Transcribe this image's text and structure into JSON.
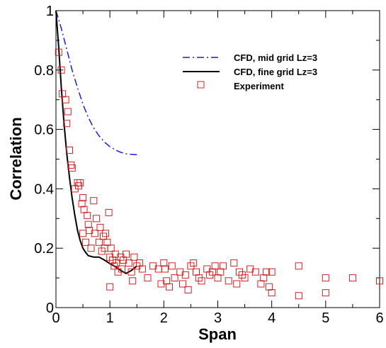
{
  "chart_data": {
    "type": "scatter",
    "xlabel": "Span",
    "ylabel": "Correlation",
    "xlim": [
      0,
      6
    ],
    "ylim": [
      0,
      1
    ],
    "x_ticks": [
      "0",
      "1",
      "2",
      "3",
      "4",
      "5",
      "6"
    ],
    "y_ticks": [
      "0",
      "0.2",
      "0.4",
      "0.6",
      "0.8",
      "1"
    ],
    "grid": false,
    "legend_position": "top-right",
    "series": [
      {
        "name": "CFD, mid grid Lz=3",
        "kind": "line",
        "style": "dash-dot",
        "color": "#1a1adc",
        "x": [
          0.0,
          0.1,
          0.2,
          0.3,
          0.4,
          0.5,
          0.6,
          0.7,
          0.8,
          0.9,
          1.0,
          1.1,
          1.2,
          1.3,
          1.4,
          1.5
        ],
        "y": [
          1.0,
          0.94,
          0.87,
          0.8,
          0.74,
          0.685,
          0.64,
          0.605,
          0.578,
          0.557,
          0.542,
          0.531,
          0.523,
          0.518,
          0.516,
          0.515
        ]
      },
      {
        "name": "CFD, fine grid Lz=3",
        "kind": "line",
        "style": "solid",
        "color": "#000000",
        "x": [
          0.0,
          0.05,
          0.1,
          0.15,
          0.2,
          0.25,
          0.3,
          0.35,
          0.4,
          0.45,
          0.5,
          0.55,
          0.6,
          0.7,
          0.8,
          0.9,
          1.0,
          1.1,
          1.2,
          1.3,
          1.4,
          1.5
        ],
        "y": [
          1.0,
          0.88,
          0.74,
          0.62,
          0.52,
          0.44,
          0.37,
          0.31,
          0.26,
          0.225,
          0.2,
          0.186,
          0.175,
          0.17,
          0.17,
          0.16,
          0.148,
          0.138,
          0.125,
          0.115,
          0.125,
          0.14
        ]
      },
      {
        "name": "Experiment",
        "kind": "markers",
        "marker": "open-square",
        "color": "#d42020",
        "x": [
          0.05,
          0.1,
          0.12,
          0.18,
          0.2,
          0.22,
          0.25,
          0.28,
          0.3,
          0.35,
          0.4,
          0.42,
          0.45,
          0.48,
          0.5,
          0.5,
          0.52,
          0.55,
          0.58,
          0.6,
          0.62,
          0.65,
          0.7,
          0.72,
          0.75,
          0.8,
          0.82,
          0.85,
          0.88,
          0.9,
          0.92,
          0.95,
          0.98,
          1.0,
          1.0,
          1.02,
          1.05,
          1.08,
          1.1,
          1.12,
          1.15,
          1.2,
          1.22,
          1.25,
          1.3,
          1.35,
          1.4,
          1.42,
          1.45,
          1.5,
          1.55,
          1.6,
          1.7,
          1.8,
          1.9,
          1.95,
          2.0,
          2.02,
          2.05,
          2.1,
          2.15,
          2.2,
          2.3,
          2.35,
          2.4,
          2.45,
          2.5,
          2.55,
          2.6,
          2.65,
          2.7,
          2.8,
          2.85,
          2.9,
          2.95,
          3.0,
          3.05,
          3.1,
          3.2,
          3.3,
          3.35,
          3.4,
          3.45,
          3.5,
          3.6,
          3.7,
          3.8,
          3.85,
          3.9,
          3.95,
          4.0,
          4.0,
          4.5,
          4.5,
          5.0,
          5.0,
          5.5,
          6.0
        ],
        "y": [
          0.86,
          0.8,
          0.72,
          0.7,
          0.62,
          0.66,
          0.53,
          0.48,
          0.47,
          0.4,
          0.42,
          0.41,
          0.42,
          0.35,
          0.37,
          0.25,
          0.33,
          0.22,
          0.31,
          0.28,
          0.26,
          0.2,
          0.36,
          0.25,
          0.3,
          0.22,
          0.27,
          0.19,
          0.24,
          0.2,
          0.25,
          0.22,
          0.32,
          0.17,
          0.07,
          0.2,
          0.16,
          0.14,
          0.18,
          0.15,
          0.12,
          0.17,
          0.13,
          0.16,
          0.18,
          0.15,
          0.12,
          0.09,
          0.17,
          0.14,
          0.15,
          0.13,
          0.1,
          0.14,
          0.13,
          0.08,
          0.15,
          0.13,
          0.09,
          0.07,
          0.14,
          0.1,
          0.12,
          0.08,
          0.11,
          0.06,
          0.14,
          0.15,
          0.12,
          0.1,
          0.09,
          0.13,
          0.11,
          0.12,
          0.14,
          0.1,
          0.12,
          0.14,
          0.09,
          0.15,
          0.08,
          0.12,
          0.11,
          0.1,
          0.13,
          0.12,
          0.08,
          0.1,
          0.12,
          0.07,
          0.12,
          0.05,
          0.14,
          0.04,
          0.1,
          0.05,
          0.1,
          0.09
        ]
      }
    ]
  }
}
